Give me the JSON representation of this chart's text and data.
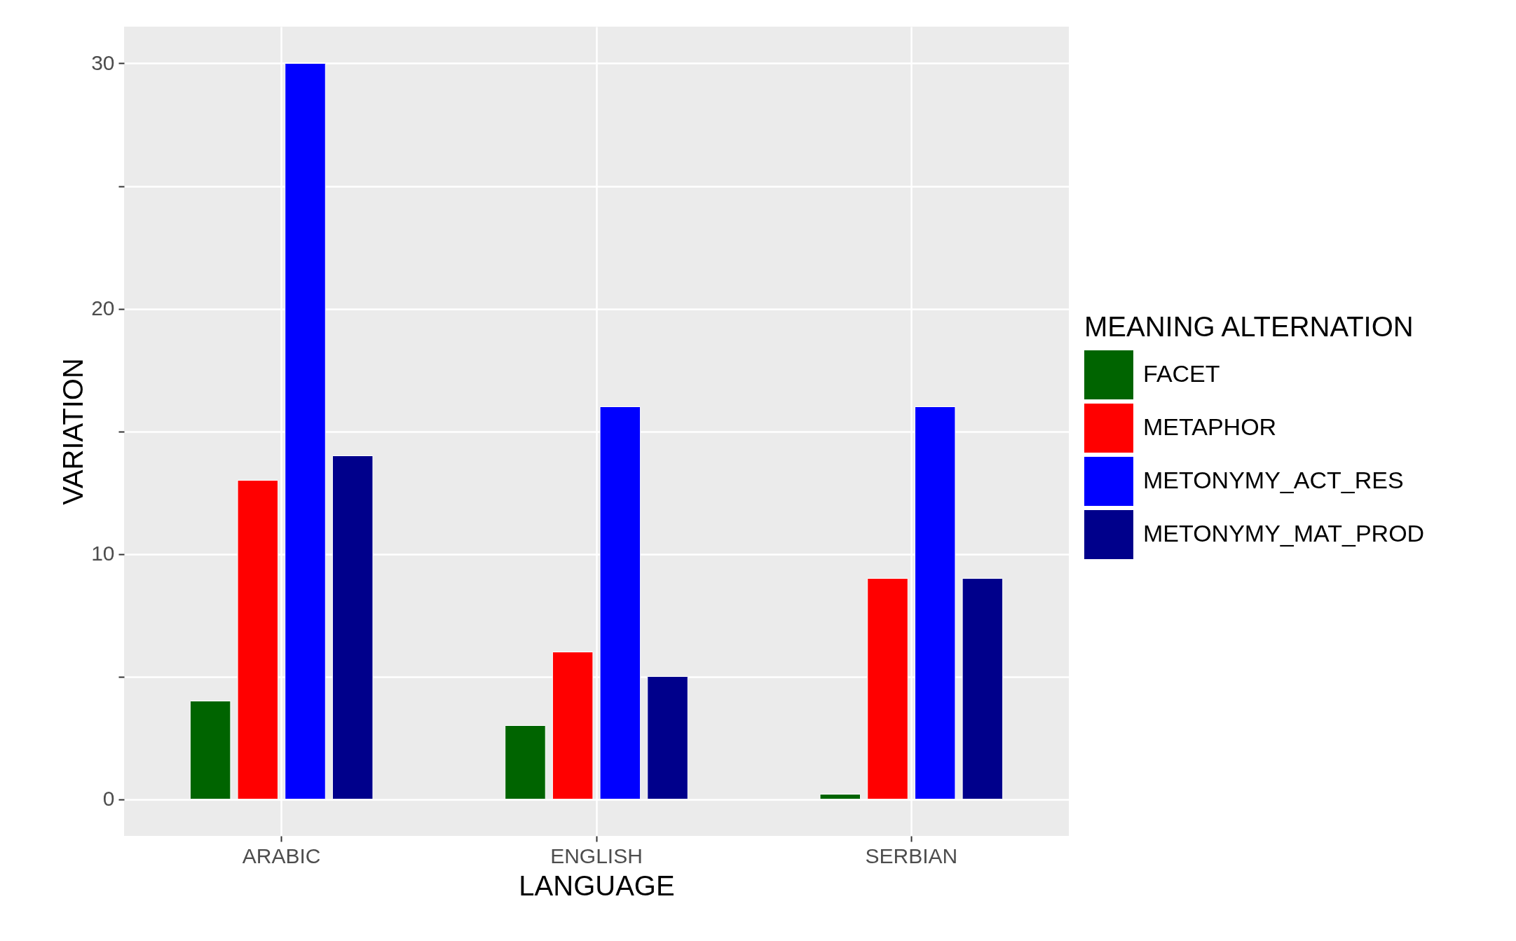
{
  "chart_data": {
    "type": "bar",
    "xlabel": "LANGUAGE",
    "ylabel": "VARIATION",
    "legend_title": "MEANING ALTERNATION",
    "categories": [
      "ARABIC",
      "ENGLISH",
      "SERBIAN"
    ],
    "series": [
      {
        "name": "FACET",
        "color": "#006400",
        "values": [
          4,
          3,
          0.2
        ]
      },
      {
        "name": "METAPHOR",
        "color": "#ff0000",
        "values": [
          13,
          6,
          9
        ]
      },
      {
        "name": "METONYMY_ACT_RES",
        "color": "#0000ff",
        "values": [
          30,
          16,
          16
        ]
      },
      {
        "name": "METONYMY_MAT_PROD",
        "color": "#00008b",
        "values": [
          14,
          5,
          9
        ]
      }
    ],
    "ylim": [
      -1.5,
      31.5
    ],
    "yticks": [
      0,
      {
        "value": 5,
        "label": null
      },
      10,
      {
        "value": 15,
        "label": null
      },
      20,
      {
        "value": 25,
        "label": null
      },
      30
    ],
    "grid": true,
    "legend": "right"
  }
}
